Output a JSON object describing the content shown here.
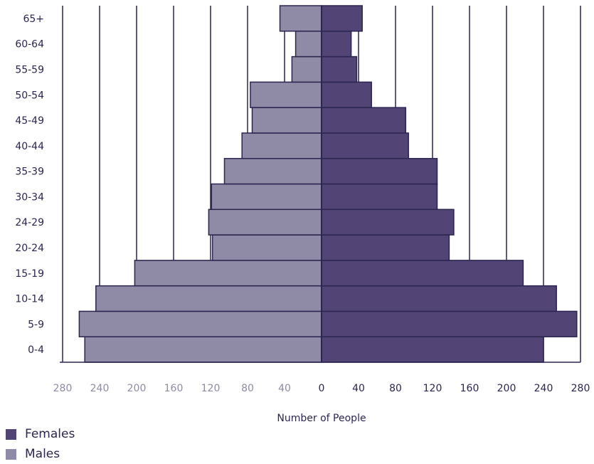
{
  "chart_data": {
    "type": "bar",
    "orientation": "horizontal-diverging",
    "categories": [
      "0-4",
      "5-9",
      "10-14",
      "15-19",
      "20-24",
      "24-29",
      "30-34",
      "35-39",
      "40-44",
      "45-49",
      "50-54",
      "55-59",
      "60-64",
      "65+"
    ],
    "series": [
      {
        "name": "Females",
        "color": "#524575",
        "values": [
          240,
          276,
          254,
          218,
          138,
          143,
          125,
          125,
          94,
          91,
          54,
          38,
          32,
          44
        ]
      },
      {
        "name": "Males",
        "color": "#8f8aa6",
        "values": [
          256,
          262,
          244,
          202,
          118,
          122,
          119,
          105,
          86,
          75,
          77,
          32,
          28,
          45
        ]
      }
    ],
    "x_ticks_left": [
      "280",
      "240",
      "200",
      "160",
      "120",
      "80",
      "40"
    ],
    "x_ticks_right": [
      "0",
      "40",
      "80",
      "120",
      "160",
      "200",
      "240",
      "280"
    ],
    "xlim": [
      -280,
      280
    ],
    "xlabel": "Number of People",
    "legend_position": "bottom-left",
    "grid": true
  },
  "legend": {
    "females_label": "Females",
    "males_label": "Males"
  }
}
